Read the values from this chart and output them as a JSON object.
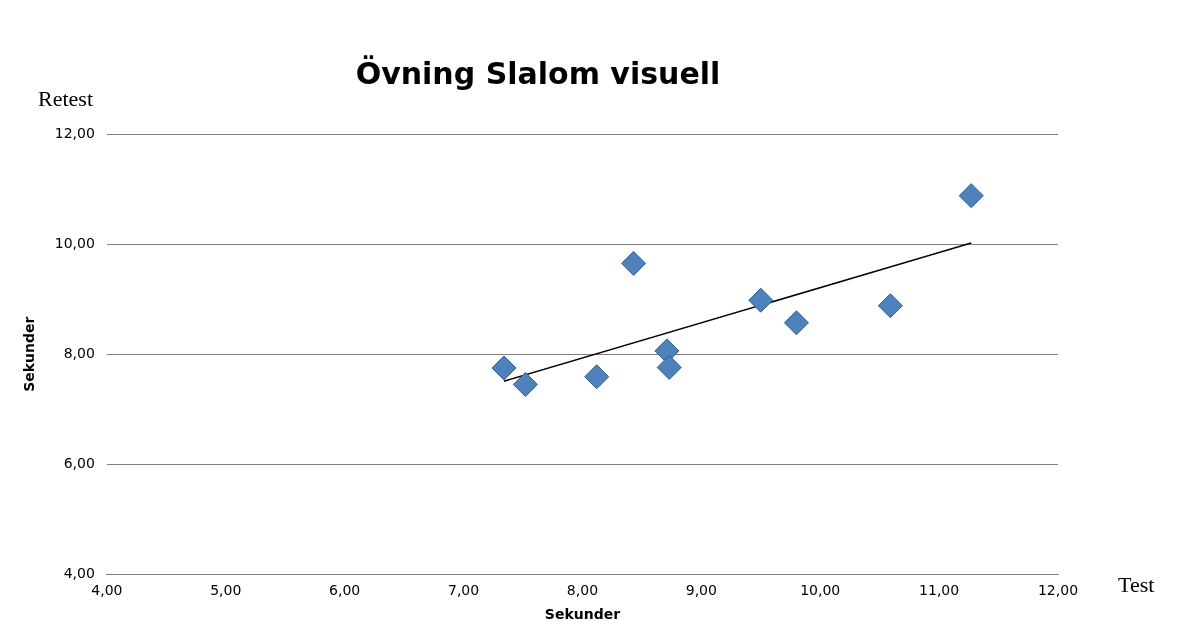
{
  "chart_data": {
    "type": "scatter",
    "title": "Övning Slalom visuell",
    "xlabel": "Sekunder",
    "ylabel": "Sekunder",
    "annotations": [
      "Retest",
      "Test"
    ],
    "series": [
      {
        "marker": "diamond",
        "color": "#4f81bd",
        "x": [
          7.34,
          7.52,
          8.12,
          8.43,
          8.71,
          8.73,
          9.5,
          9.8,
          10.59,
          11.27
        ],
        "values": [
          7.75,
          7.45,
          7.59,
          9.65,
          8.06,
          7.76,
          8.98,
          8.57,
          8.88,
          10.88
        ]
      },
      {
        "type": "line",
        "color": "#000000",
        "x": [
          7.34,
          11.27
        ],
        "values": [
          7.51,
          10.02
        ]
      }
    ],
    "xlim": [
      4,
      12
    ],
    "xticks": [
      {
        "value": 4,
        "label": "4,00"
      },
      {
        "value": 5,
        "label": "5,00"
      },
      {
        "value": 6,
        "label": "6,00"
      },
      {
        "value": 7,
        "label": "7,00"
      },
      {
        "value": 8,
        "label": "8,00"
      },
      {
        "value": 9,
        "label": "9,00"
      },
      {
        "value": 10,
        "label": "10,00"
      },
      {
        "value": 11,
        "label": "11,00"
      },
      {
        "value": 12,
        "label": "12,00"
      }
    ],
    "ylim": [
      4,
      12
    ],
    "yticks": [
      {
        "value": 4,
        "label": "4,00"
      },
      {
        "value": 6,
        "label": "6,00"
      },
      {
        "value": 8,
        "label": "8,00"
      },
      {
        "value": 10,
        "label": "10,00"
      },
      {
        "value": 12,
        "label": "12,00"
      }
    ],
    "grid": "y",
    "legend": false
  }
}
